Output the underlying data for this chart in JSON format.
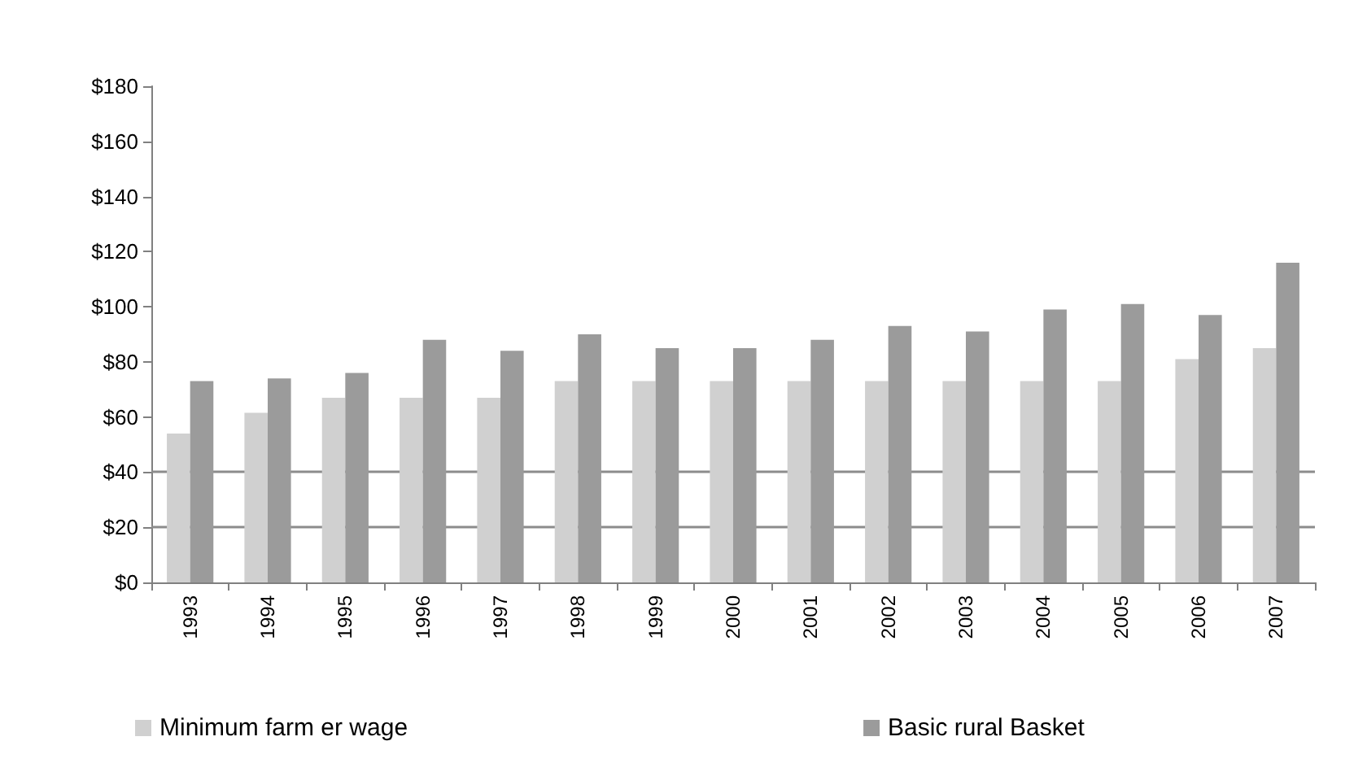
{
  "chart_data": {
    "type": "bar",
    "categories": [
      "1993",
      "1994",
      "1995",
      "1996",
      "1997",
      "1998",
      "1999",
      "2000",
      "2001",
      "2002",
      "2003",
      "2004",
      "2005",
      "2006",
      "2007"
    ],
    "series": [
      {
        "name": "Minimum farm er wage",
        "color": "#d0d0d0",
        "values": [
          54,
          61.5,
          67,
          67,
          67,
          73,
          73,
          73,
          73,
          73,
          73,
          73,
          73,
          81,
          85
        ]
      },
      {
        "name": "Basic rural Basket",
        "color": "#9b9b9b",
        "values": [
          73,
          74,
          76,
          88,
          84,
          90,
          85,
          85,
          88,
          93,
          91,
          99,
          101,
          97,
          116
        ]
      }
    ],
    "ylim": [
      0,
      180
    ],
    "yticks": [
      {
        "value": 0,
        "label": "$0"
      },
      {
        "value": 20,
        "label": "$20"
      },
      {
        "value": 40,
        "label": "$40"
      },
      {
        "value": 60,
        "label": "$60"
      },
      {
        "value": 80,
        "label": "$80"
      },
      {
        "value": 100,
        "label": "$100"
      },
      {
        "value": 120,
        "label": "$120"
      },
      {
        "value": 140,
        "label": "$140"
      },
      {
        "value": 160,
        "label": "$160"
      },
      {
        "value": 180,
        "label": "$180"
      }
    ],
    "ref_lines": [
      {
        "axis": "y",
        "value": 20,
        "color": "#8c8c8c"
      },
      {
        "axis": "y",
        "value": 40,
        "color": "#8c8c8c"
      }
    ],
    "grid": false,
    "legend": "bottom left"
  }
}
